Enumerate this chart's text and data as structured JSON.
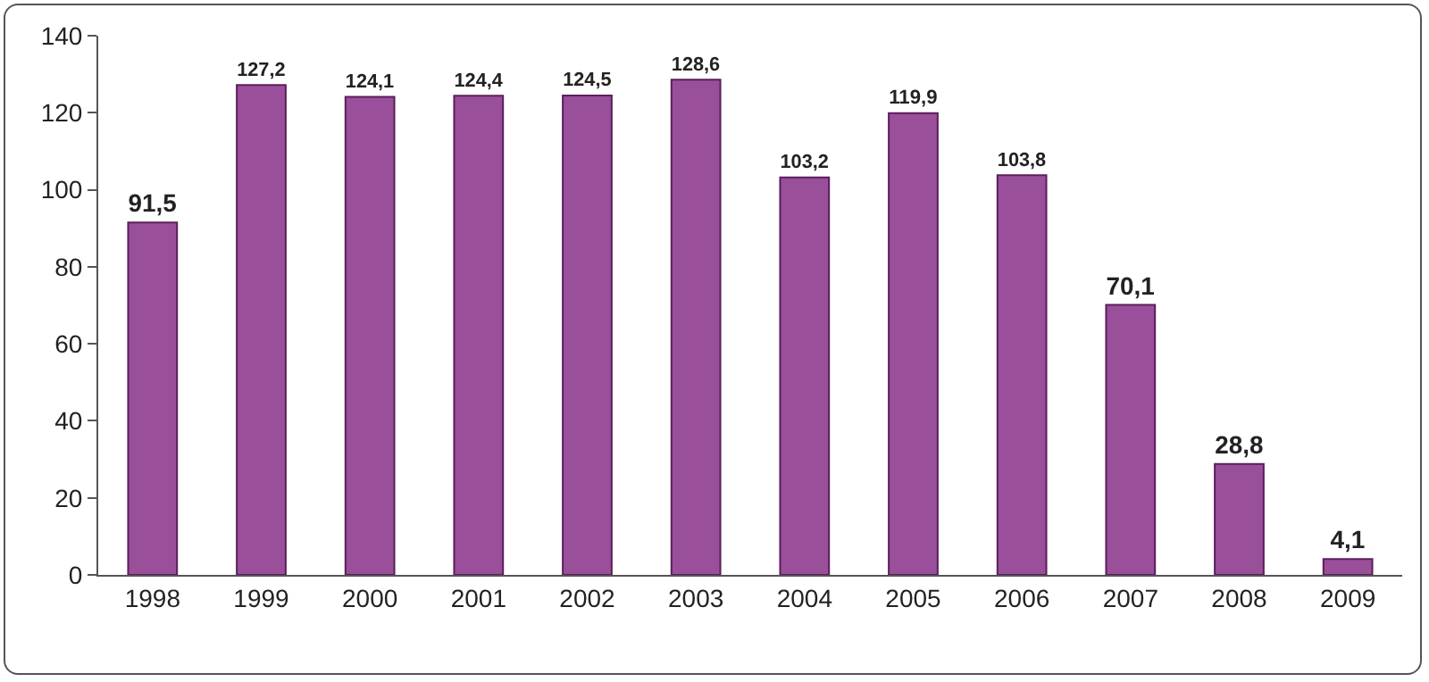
{
  "chart_data": {
    "type": "bar",
    "categories": [
      "1998",
      "1999",
      "2000",
      "2001",
      "2002",
      "2003",
      "2004",
      "2005",
      "2006",
      "2007",
      "2008",
      "2009"
    ],
    "values": [
      91.5,
      127.2,
      124.1,
      124.4,
      124.5,
      128.6,
      103.2,
      119.9,
      103.8,
      70.1,
      28.8,
      4.1
    ],
    "value_labels": [
      "91,5",
      "127,2",
      "124,1",
      "124,4",
      "124,5",
      "128,6",
      "103,2",
      "119,9",
      "103,8",
      "70,1",
      "28,8",
      "4,1"
    ],
    "color": "#9a4f9a",
    "ylim": [
      0,
      140
    ],
    "yticks": [
      0,
      20,
      40,
      60,
      80,
      100,
      120,
      140
    ],
    "grid": false
  }
}
